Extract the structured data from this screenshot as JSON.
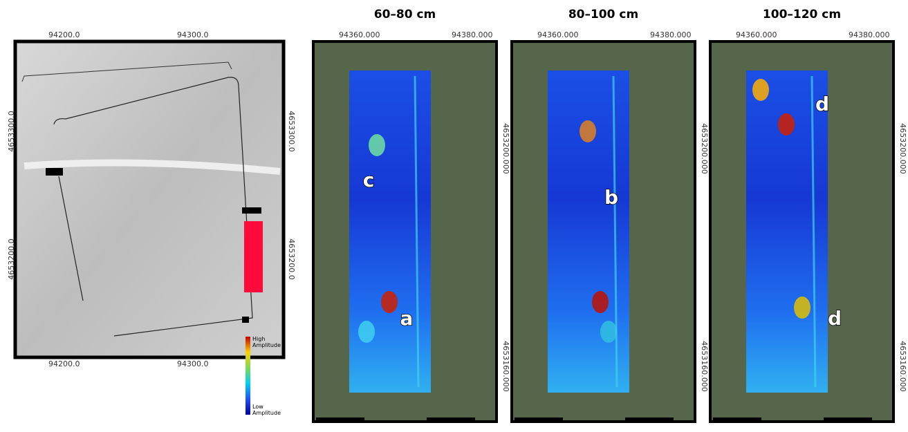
{
  "overview": {
    "x_ticks": [
      "94200.0",
      "94300.0"
    ],
    "y_ticks": [
      "4653300.0",
      "4653200.0"
    ],
    "legend": {
      "high": "High Amplitude",
      "low": "Low Amplitude"
    }
  },
  "panels": [
    {
      "title": "60–80 cm",
      "x_ticks": [
        "94360.000",
        "94380.000"
      ],
      "y_ticks": [
        "4653200.000",
        "4653160.000"
      ],
      "labels": [
        "c",
        "a"
      ]
    },
    {
      "title": "80–100 cm",
      "x_ticks": [
        "94360.000",
        "94380.000"
      ],
      "y_ticks": [
        "4653200.000",
        "4653160.000"
      ],
      "labels": [
        "b"
      ]
    },
    {
      "title": "100–120 cm",
      "x_ticks": [
        "94360.000",
        "94380.000"
      ],
      "y_ticks": [
        "4653200.000",
        "4653160.000"
      ],
      "labels": [
        "d",
        "d"
      ]
    }
  ]
}
